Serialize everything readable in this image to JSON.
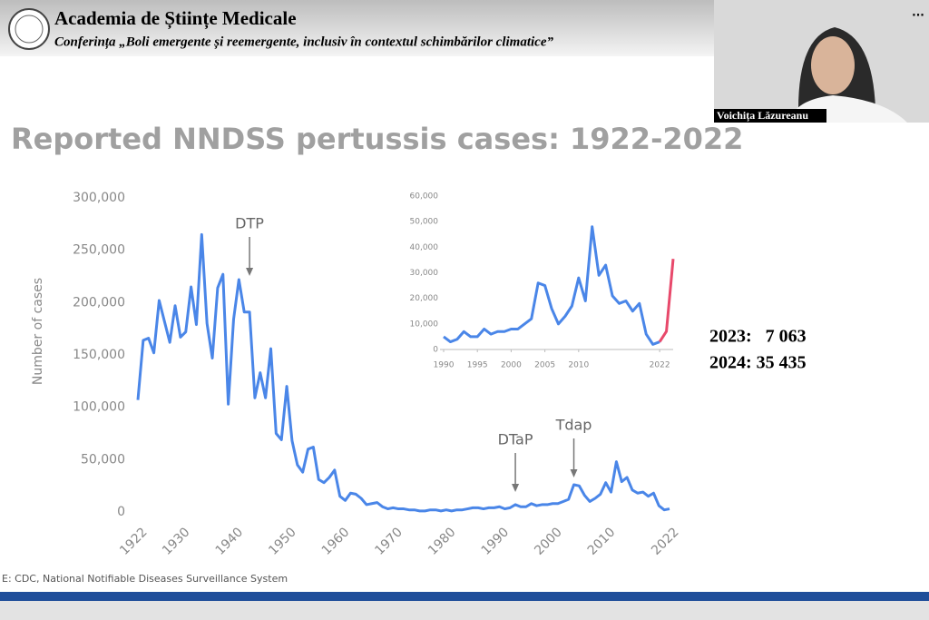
{
  "header": {
    "title": "Academia de Științe Medicale",
    "subtitle": "Conferința „Boli emergente și reemergente, inclusiv în contextul schimbărilor climatice”"
  },
  "video": {
    "speaker": "Voichița Lăzureanu",
    "menu": "..."
  },
  "slide": {
    "title": "Reported NNDSS pertussis cases: 1922-2022",
    "source": "E: CDC, National Notifiable Diseases Surveillance System",
    "notes": [
      "2023:   7 063",
      "2024: 35 435"
    ]
  },
  "chart_data": [
    {
      "type": "line",
      "y_label": "Number of cases",
      "color": "#4a86e8",
      "x": [
        1922,
        1923,
        1924,
        1925,
        1926,
        1927,
        1928,
        1929,
        1930,
        1931,
        1932,
        1933,
        1934,
        1935,
        1936,
        1937,
        1938,
        1939,
        1940,
        1941,
        1942,
        1943,
        1944,
        1945,
        1946,
        1947,
        1948,
        1949,
        1950,
        1951,
        1952,
        1953,
        1954,
        1955,
        1956,
        1957,
        1958,
        1959,
        1960,
        1961,
        1962,
        1963,
        1964,
        1965,
        1966,
        1967,
        1968,
        1969,
        1970,
        1971,
        1972,
        1973,
        1974,
        1975,
        1976,
        1977,
        1978,
        1979,
        1980,
        1981,
        1982,
        1983,
        1984,
        1985,
        1986,
        1987,
        1988,
        1989,
        1990,
        1991,
        1992,
        1993,
        1994,
        1995,
        1996,
        1997,
        1998,
        1999,
        2000,
        2001,
        2002,
        2003,
        2004,
        2005,
        2006,
        2007,
        2008,
        2009,
        2010,
        2011,
        2012,
        2013,
        2014,
        2015,
        2016,
        2017,
        2018,
        2019,
        2020,
        2021,
        2022
      ],
      "values": [
        107000,
        164000,
        166000,
        152000,
        202000,
        182000,
        162000,
        197000,
        167000,
        172000,
        215000,
        179000,
        265000,
        180000,
        147000,
        214000,
        227000,
        103000,
        184000,
        222000,
        191000,
        191000,
        109000,
        133000,
        109000,
        156000,
        75000,
        69000,
        120000,
        68000,
        45000,
        38000,
        60000,
        62000,
        31000,
        28000,
        33000,
        40000,
        15000,
        11000,
        18000,
        17000,
        13000,
        7000,
        8000,
        9000,
        5000,
        3000,
        4000,
        3000,
        3000,
        2000,
        2000,
        1000,
        1000,
        2000,
        2000,
        1000,
        2000,
        1000,
        2000,
        2000,
        3000,
        4000,
        4000,
        3000,
        4000,
        4000,
        5000,
        3000,
        4000,
        7000,
        5000,
        5000,
        8000,
        6000,
        7000,
        7000,
        8000,
        8000,
        10000,
        12000,
        26000,
        25000,
        16000,
        10000,
        13000,
        17000,
        28000,
        19000,
        48000,
        29000,
        33000,
        21000,
        18000,
        19000,
        15000,
        18000,
        6000,
        2000,
        3000
      ],
      "xlim": [
        1922,
        2022
      ],
      "xticks": [
        1922,
        1930,
        1940,
        1950,
        1960,
        1970,
        1980,
        1990,
        2000,
        2010,
        2022
      ],
      "ylim": [
        0,
        300000
      ],
      "yticks": [
        0,
        {
          "value": 50000,
          "label": "50,000"
        },
        {
          "value": 100000,
          "label": "100,000"
        },
        {
          "value": 150000,
          "label": "150,000"
        },
        {
          "value": 200000,
          "label": "200,000"
        },
        {
          "value": 250000,
          "label": "250,000"
        },
        {
          "value": 300000,
          "label": "300,000"
        }
      ],
      "annotations": [
        {
          "text": "DTP",
          "x": 1943
        },
        {
          "text": "DTaP",
          "x": 1993
        },
        {
          "text": "Tdap",
          "x": 2004
        }
      ]
    },
    {
      "type": "line",
      "series": [
        {
          "color": "#4a86e8",
          "x": [
            1990,
            1991,
            1992,
            1993,
            1994,
            1995,
            1996,
            1997,
            1998,
            1999,
            2000,
            2001,
            2002,
            2003,
            2004,
            2005,
            2006,
            2007,
            2008,
            2009,
            2010,
            2011,
            2012,
            2013,
            2014,
            2015,
            2016,
            2017,
            2018,
            2019,
            2020,
            2021,
            2022
          ],
          "values": [
            5000,
            3000,
            4000,
            7000,
            5000,
            5000,
            8000,
            6000,
            7000,
            7000,
            8000,
            8000,
            10000,
            12000,
            26000,
            25000,
            16000,
            10000,
            13000,
            17000,
            28000,
            19000,
            48000,
            29000,
            33000,
            21000,
            18000,
            19000,
            15000,
            18000,
            6000,
            2000,
            3000
          ]
        },
        {
          "color": "#e8496b",
          "x": [
            2022,
            2023,
            2024
          ],
          "values": [
            3000,
            7063,
            35435
          ]
        }
      ],
      "xlim": [
        1990,
        2024
      ],
      "xticks": [
        1990,
        1995,
        2000,
        2005,
        2010,
        2022
      ],
      "ylim": [
        0,
        60000
      ],
      "yticks": [
        0,
        {
          "value": 10000,
          "label": "10,000"
        },
        {
          "value": 20000,
          "label": "20,000"
        },
        {
          "value": 30000,
          "label": "30,000"
        },
        {
          "value": 40000,
          "label": "40,000"
        },
        {
          "value": 50000,
          "label": "50,000"
        },
        {
          "value": 60000,
          "label": "60,000"
        }
      ]
    }
  ]
}
